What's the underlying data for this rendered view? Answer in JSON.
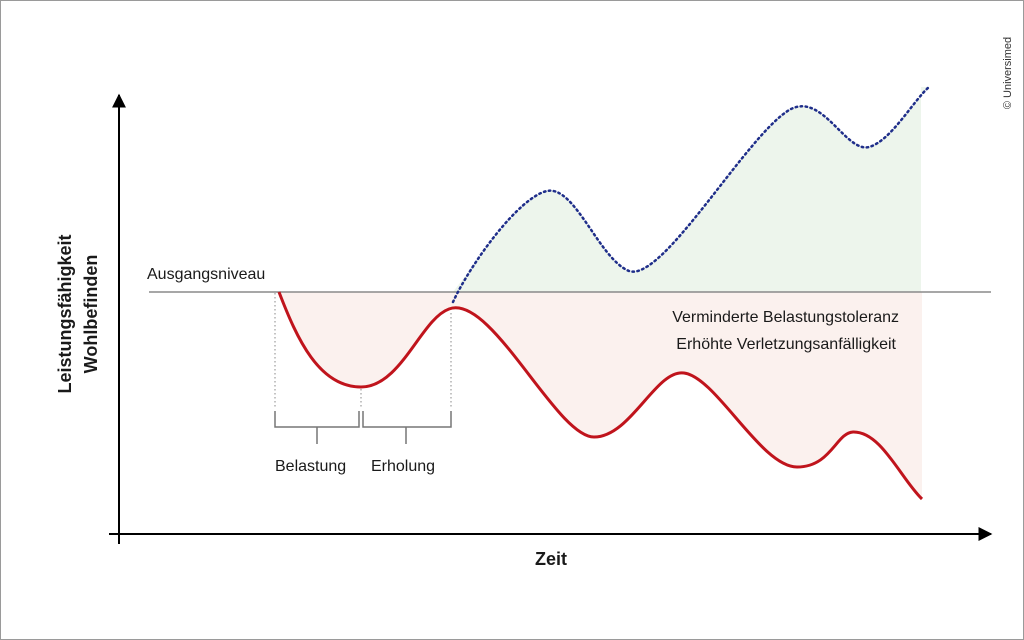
{
  "diagram": {
    "y_axis_label_line1": "Leistungsfähigkeit",
    "y_axis_label_line2": "Wohlbefinden",
    "x_axis_label": "Zeit",
    "baseline_label": "Ausgangsniveau",
    "phase_labels": [
      "Belastung",
      "Erholung"
    ],
    "annotation_line1": "Verminderte Belastungstoleranz",
    "annotation_line2": "Erhöhte Verletzungsanfälligkeit",
    "copyright": "© Universimed"
  },
  "colors": {
    "decline_curve": "#c0141c",
    "decline_fill": "#fbf1ee",
    "improvement_curve": "#1f2e8a",
    "improvement_fill": "#edf5ec",
    "baseline": "#8a8a8a",
    "axes": "#000000"
  }
}
